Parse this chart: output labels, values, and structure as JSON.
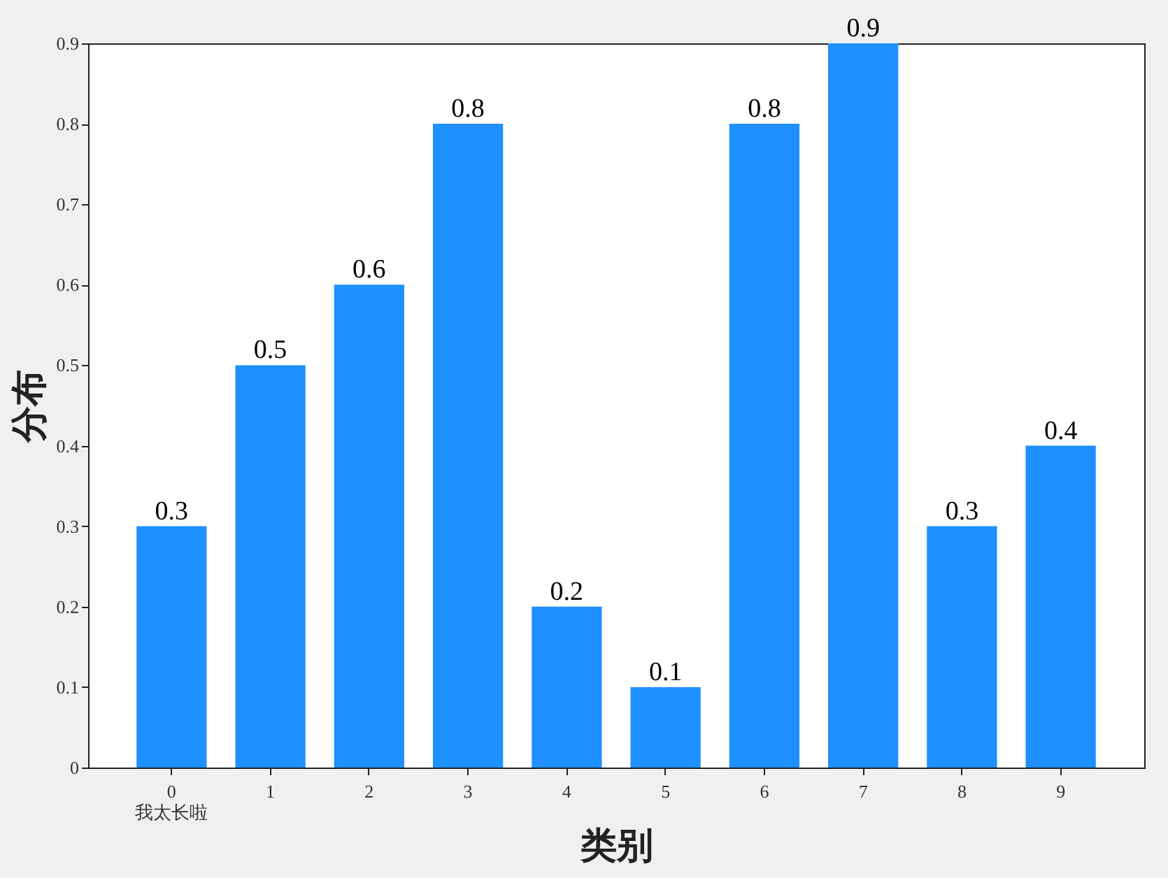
{
  "chart_data": {
    "type": "bar",
    "xlabel": "类别",
    "ylabel": "分布",
    "categories": [
      "0\n我太长啦",
      "1",
      "2",
      "3",
      "4",
      "5",
      "6",
      "7",
      "8",
      "9"
    ],
    "values": [
      0.3,
      0.5,
      0.6,
      0.8,
      0.2,
      0.1,
      0.8,
      0.9,
      0.3,
      0.4
    ],
    "color": "#1e90ff",
    "ylim": [
      0,
      0.9
    ],
    "yticks": [
      0,
      0.1,
      0.2,
      0.3,
      0.4,
      0.5,
      0.6,
      0.7,
      0.8,
      0.9
    ],
    "data_labels": true
  }
}
